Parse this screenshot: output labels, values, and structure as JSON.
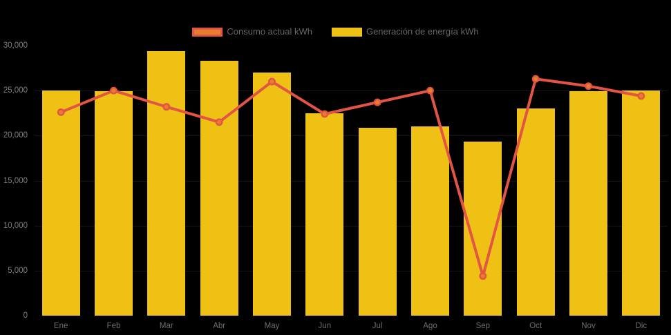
{
  "legend": {
    "items": [
      {
        "label": "Consumo actual kWh"
      },
      {
        "label": "Generación de energía kWh"
      }
    ]
  },
  "chart_data": {
    "type": "bar+line",
    "title": "",
    "xlabel": "",
    "ylabel": "",
    "legend_position": "top-center",
    "background_color": "#000000",
    "categories": [
      "Ene",
      "Feb",
      "Mar",
      "Abr",
      "May",
      "Jun",
      "Jul",
      "Ago",
      "Sep",
      "Oct",
      "Nov",
      "Dic"
    ],
    "series": [
      {
        "name": "Consumo actual kWh",
        "type": "line",
        "line_color": "#E25544",
        "marker_fill": "#E67F2C",
        "marker_border": "#E25544",
        "values": [
          22600,
          25000,
          23200,
          21500,
          26000,
          22400,
          23700,
          25000,
          4400,
          26300,
          25500,
          24400
        ]
      },
      {
        "name": "Generación de energía kWh",
        "type": "bar",
        "color": "#F0C115",
        "values": [
          25000,
          24900,
          29400,
          28300,
          27000,
          22500,
          20900,
          21000,
          19300,
          23000,
          24900,
          25000
        ]
      }
    ],
    "ylim": [
      0,
      30000
    ],
    "yticks": [
      0,
      5000,
      10000,
      15000,
      20000,
      25000,
      30000
    ],
    "ytick_labels": [
      "0",
      "5,000",
      "10,000",
      "15,000",
      "20,000",
      "25,000",
      "30,000"
    ],
    "grid": "horizontal-faint"
  }
}
